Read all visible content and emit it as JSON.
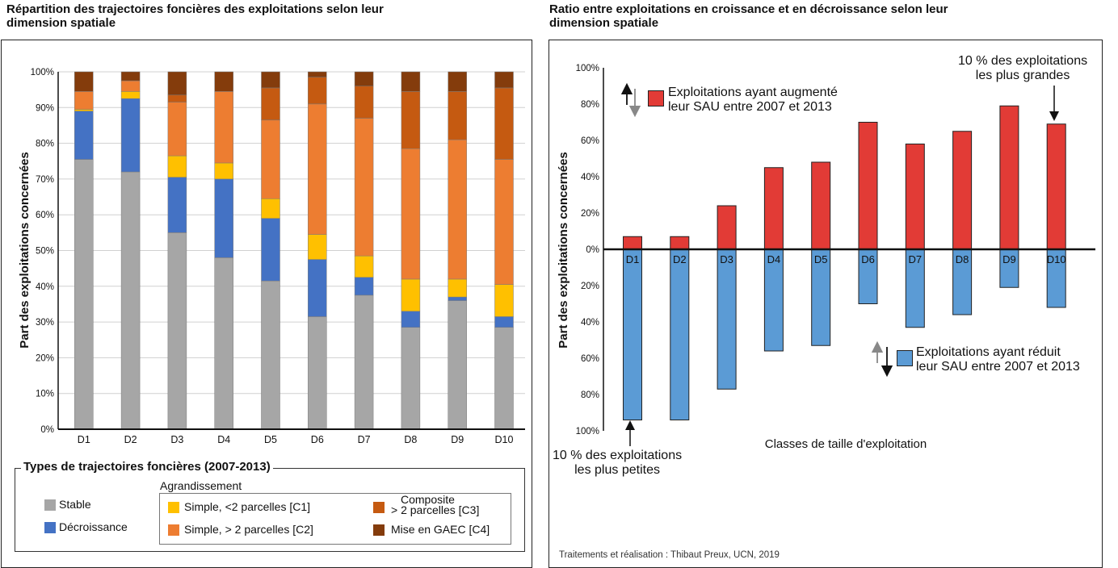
{
  "left": {
    "title_line1": "Répartition des trajectoires foncières des exploitations selon leur",
    "title_line2": "dimension spatiale",
    "legend_title": "Types de trajectoires foncières (2007-2013)",
    "legend_group_label": "Agrandissement",
    "legend_items": {
      "stable": "Stable",
      "decroissance": "Décroissance",
      "c1": "Simple, <2 parcelles [C1]",
      "c2": "Simple, > 2 parcelles [C2]",
      "c3_line1": "Composite",
      "c3_line2": "> 2 parcelles [C3]",
      "c4": "Mise en GAEC [C4]"
    }
  },
  "right": {
    "title_line1": "Ratio entre exploitations en croissance et en décroissance selon leur",
    "title_line2": "dimension spatiale",
    "legend_up_line1": "Exploitations ayant augmenté",
    "legend_up_line2": "leur SAU entre 2007 et 2013",
    "legend_down_line1": "Exploitations ayant réduit",
    "legend_down_line2": "leur SAU entre 2007 et 2013",
    "annot_large_line1": "10 % des exploitations",
    "annot_large_line2": "les plus grandes",
    "annot_small_line1": "10 % des exploitations",
    "annot_small_line2": "les plus petites",
    "credit": "Traitements et réalisation : Thibaut Preux, UCN, 2019"
  },
  "chart_data": [
    {
      "type": "bar",
      "stacked": true,
      "ylabel": "Part des exploitations concernées",
      "ylim": [
        0,
        100
      ],
      "yticks": [
        "0%",
        "10%",
        "20%",
        "30%",
        "40%",
        "50%",
        "60%",
        "70%",
        "80%",
        "90%",
        "100%"
      ],
      "grid": true,
      "legend": "bottom",
      "categories": [
        "D1",
        "D2",
        "D3",
        "D4",
        "D5",
        "D6",
        "D7",
        "D8",
        "D9",
        "D10"
      ],
      "series": [
        {
          "name": "Stable",
          "color": "#a6a6a6",
          "values": [
            75.5,
            72,
            55,
            48,
            41.5,
            31.5,
            37.5,
            28.5,
            36,
            28.5
          ]
        },
        {
          "name": "Décroissance",
          "color": "#4472c4",
          "values": [
            13.5,
            20.5,
            15.5,
            22,
            17.5,
            16,
            5,
            4.5,
            1,
            3
          ]
        },
        {
          "name": "Simple, <2 parcelles [C1]",
          "color": "#ffc000",
          "values": [
            0.5,
            2,
            6,
            4.5,
            5.5,
            7,
            6,
            9,
            5,
            9
          ]
        },
        {
          "name": "Simple, > 2 parcelles [C2]",
          "color": "#ed7d31",
          "values": [
            5,
            3,
            15,
            20,
            22,
            36.5,
            38.5,
            36.5,
            39,
            35
          ]
        },
        {
          "name": "Composite > 2 parcelles [C3]",
          "color": "#c55a11",
          "values": [
            0,
            0,
            2,
            0,
            9,
            7.5,
            9,
            16,
            13.5,
            20
          ]
        },
        {
          "name": "Mise en GAEC [C4]",
          "color": "#843c0c",
          "values": [
            5.5,
            2.5,
            6.5,
            5.5,
            4.5,
            1.5,
            4,
            5.5,
            5.5,
            4.5
          ]
        }
      ]
    },
    {
      "type": "bar",
      "ylabel": "Part des exploitations concernées",
      "xlabel": "Classes de taille d'exploitation",
      "ylim": [
        -100,
        100
      ],
      "yticks": [
        "100%",
        "80%",
        "60%",
        "40%",
        "20%",
        "0%",
        "20%",
        "40%",
        "60%",
        "80%",
        "100%"
      ],
      "grid": false,
      "categories": [
        "D1",
        "D2",
        "D3",
        "D4",
        "D5",
        "D6",
        "D7",
        "D8",
        "D9",
        "D10"
      ],
      "series": [
        {
          "name": "Exploitations ayant augmenté leur SAU entre 2007 et 2013",
          "color": "#e23b36",
          "values": [
            7,
            7,
            24,
            45,
            48,
            70,
            58,
            65,
            79,
            69
          ]
        },
        {
          "name": "Exploitations ayant réduit leur SAU entre 2007 et 2013",
          "color": "#5b9bd5",
          "values": [
            -94,
            -94,
            -77,
            -56,
            -53,
            -30,
            -43,
            -36,
            -21,
            -32
          ]
        }
      ]
    }
  ]
}
